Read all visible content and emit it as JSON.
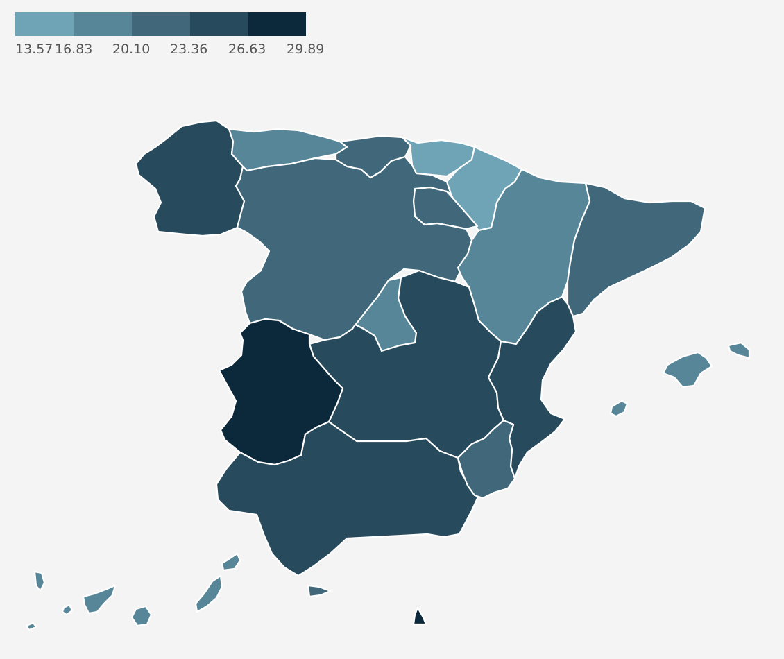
{
  "legend": {
    "colors": [
      "#6fa3b6",
      "#578698",
      "#40687a",
      "#274a5c",
      "#0c283b"
    ],
    "ticks": [
      "13.57",
      "16.83",
      "20.10",
      "23.36",
      "26.63",
      "29.89"
    ]
  },
  "regions": [
    {
      "id": "galicia",
      "color": "#274a5c"
    },
    {
      "id": "asturias",
      "color": "#578698"
    },
    {
      "id": "cantabria",
      "color": "#40687a"
    },
    {
      "id": "pais-vasco",
      "color": "#6fa3b6"
    },
    {
      "id": "navarra",
      "color": "#6fa3b6"
    },
    {
      "id": "la-rioja",
      "color": "#40687a"
    },
    {
      "id": "aragon",
      "color": "#578698"
    },
    {
      "id": "cataluna",
      "color": "#40687a"
    },
    {
      "id": "castilla-y-leon",
      "color": "#40687a"
    },
    {
      "id": "madrid",
      "color": "#578698"
    },
    {
      "id": "castilla-la-mancha",
      "color": "#274a5c"
    },
    {
      "id": "comunidad-valenciana",
      "color": "#274a5c"
    },
    {
      "id": "extremadura",
      "color": "#0c283b"
    },
    {
      "id": "andalucia",
      "color": "#274a5c"
    },
    {
      "id": "murcia",
      "color": "#40687a"
    },
    {
      "id": "baleares-mallorca",
      "color": "#578698"
    },
    {
      "id": "baleares-menorca",
      "color": "#578698"
    },
    {
      "id": "baleares-ibiza",
      "color": "#578698"
    },
    {
      "id": "ceuta",
      "color": "#40687a"
    },
    {
      "id": "melilla",
      "color": "#0c283b"
    },
    {
      "id": "canarias-lanzarote",
      "color": "#578698"
    },
    {
      "id": "canarias-fuerteventura",
      "color": "#578698"
    },
    {
      "id": "canarias-gran-canaria",
      "color": "#578698"
    },
    {
      "id": "canarias-tenerife",
      "color": "#578698"
    },
    {
      "id": "canarias-la-gomera",
      "color": "#578698"
    },
    {
      "id": "canarias-la-palma",
      "color": "#578698"
    },
    {
      "id": "canarias-el-hierro",
      "color": "#578698"
    }
  ]
}
